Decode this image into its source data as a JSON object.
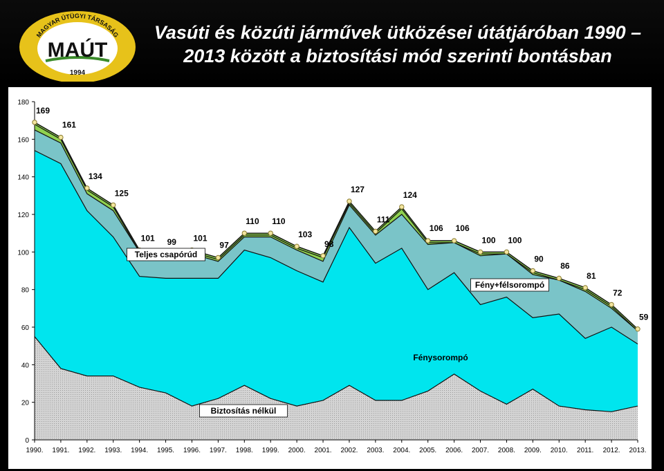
{
  "header": {
    "logo": {
      "text_top": "MAGYAR ÚTÜGYI TÁRSASÁG",
      "text_main": "MAÚT",
      "year": "1994"
    },
    "title_line1": "Vasúti és közúti járművek ütközései útátjáróban 1990 –",
    "title_line2": "2013 között a biztosítási mód szerinti bontásban"
  },
  "chart_data": {
    "type": "area",
    "stacked": true,
    "categories": [
      "1990.",
      "1991.",
      "1992.",
      "1993.",
      "1994.",
      "1995.",
      "1996.",
      "1997.",
      "1998.",
      "1999.",
      "2000.",
      "2001.",
      "2002.",
      "2003.",
      "2004.",
      "2005.",
      "2006.",
      "2007.",
      "2008.",
      "2009.",
      "2010.",
      "2011.",
      "2012.",
      "2013."
    ],
    "cumulative": {
      "biztositas_nelkul": [
        55,
        38,
        34,
        34,
        28,
        25,
        18,
        22,
        29,
        22,
        18,
        21,
        29,
        21,
        21,
        26,
        35,
        26,
        19,
        27,
        18,
        16,
        15,
        18
      ],
      "fenysorompo": [
        154,
        147,
        122,
        108,
        87,
        86,
        86,
        86,
        101,
        97,
        90,
        84,
        113,
        94,
        102,
        80,
        89,
        72,
        76,
        65,
        67,
        54,
        60,
        51
      ],
      "feny_felsorompo": [
        165,
        158,
        131,
        122,
        100,
        97,
        99,
        95,
        108,
        108,
        101,
        95,
        125,
        109,
        120,
        104,
        105,
        98,
        99,
        88,
        85,
        79,
        70,
        58
      ],
      "teljes_csaporud": [
        168,
        160,
        133,
        124,
        100,
        98,
        100,
        96,
        109,
        109,
        102,
        97,
        126,
        110,
        123,
        105,
        105,
        99,
        99,
        89,
        85,
        80,
        71,
        58
      ],
      "total": [
        169,
        161,
        134,
        125,
        101,
        99,
        101,
        97,
        110,
        110,
        103,
        98,
        127,
        111,
        124,
        106,
        106,
        100,
        100,
        90,
        86,
        81,
        72,
        59
      ]
    },
    "series": [
      {
        "name": "Biztosítás nélkül",
        "color": "#c8c8c8"
      },
      {
        "name": "Fénysorompó",
        "color": "#00e5ee"
      },
      {
        "name": "Fény+félsorompó",
        "color": "#7ac4c8"
      },
      {
        "name": "Teljes csapórúd",
        "color": "#8fd14f"
      },
      {
        "name": "",
        "color": "#ffffff"
      }
    ],
    "data_labels": [
      169,
      161,
      134,
      125,
      101,
      99,
      101,
      97,
      110,
      110,
      103,
      98,
      127,
      111,
      124,
      106,
      106,
      100,
      100,
      90,
      86,
      81,
      72,
      59
    ],
    "ylim": [
      0,
      180
    ],
    "yticks": [
      0,
      20,
      40,
      60,
      80,
      100,
      120,
      140,
      160,
      180
    ],
    "xlabel": "",
    "ylabel": ""
  }
}
